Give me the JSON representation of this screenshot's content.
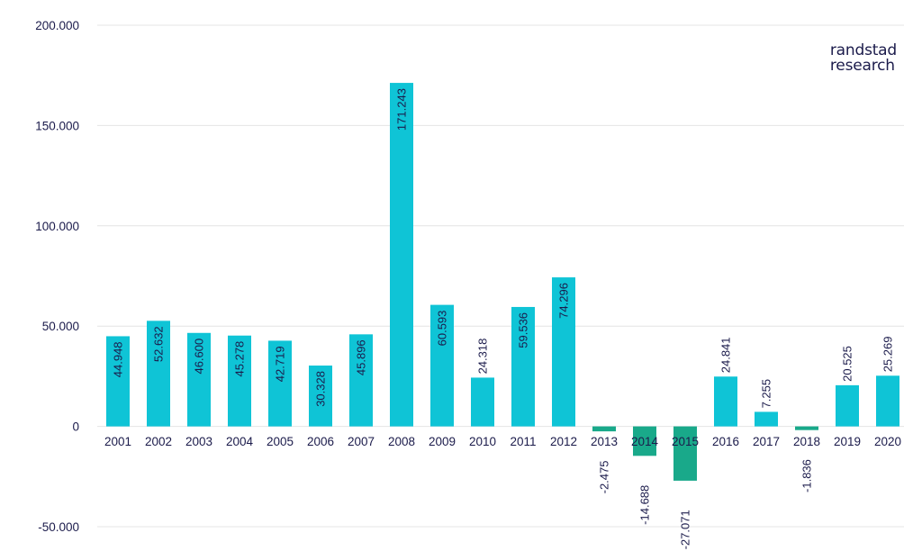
{
  "brand": {
    "line1": "randstad",
    "line2": "research"
  },
  "colors": {
    "positive": "#0fc4d6",
    "negative": "#19a98a",
    "text": "#1b1b4b",
    "grid": "#e4e4e4"
  },
  "chart_data": {
    "type": "bar",
    "title": "",
    "xlabel": "",
    "ylabel": "",
    "ylim": [
      -50000,
      200000
    ],
    "yticks": [
      {
        "value": -50000,
        "label": "-50.000"
      },
      {
        "value": 0,
        "label": "0"
      },
      {
        "value": 50000,
        "label": "50.000"
      },
      {
        "value": 100000,
        "label": "100.000"
      },
      {
        "value": 150000,
        "label": "150.000"
      },
      {
        "value": 200000,
        "label": "200.000"
      }
    ],
    "grid": true,
    "categories": [
      "2001",
      "2002",
      "2003",
      "2004",
      "2005",
      "2006",
      "2007",
      "2008",
      "2009",
      "2010",
      "2011",
      "2012",
      "2013",
      "2014",
      "2015",
      "2016",
      "2017",
      "2018",
      "2019",
      "2020"
    ],
    "values": [
      44948,
      52632,
      46600,
      45278,
      42719,
      30328,
      45896,
      171243,
      60593,
      24318,
      59536,
      74296,
      -2475,
      -14688,
      -27071,
      24841,
      7255,
      -1836,
      20525,
      25269
    ],
    "labels": [
      "44.948",
      "52.632",
      "46.600",
      "45.278",
      "42.719",
      "30.328",
      "45.896",
      "171.243",
      "60.593",
      "24.318",
      "59.536",
      "74.296",
      "-2.475",
      "-14.688",
      "-27.071",
      "24.841",
      "7.255",
      "-1.836",
      "20.525",
      "25.269"
    ]
  }
}
